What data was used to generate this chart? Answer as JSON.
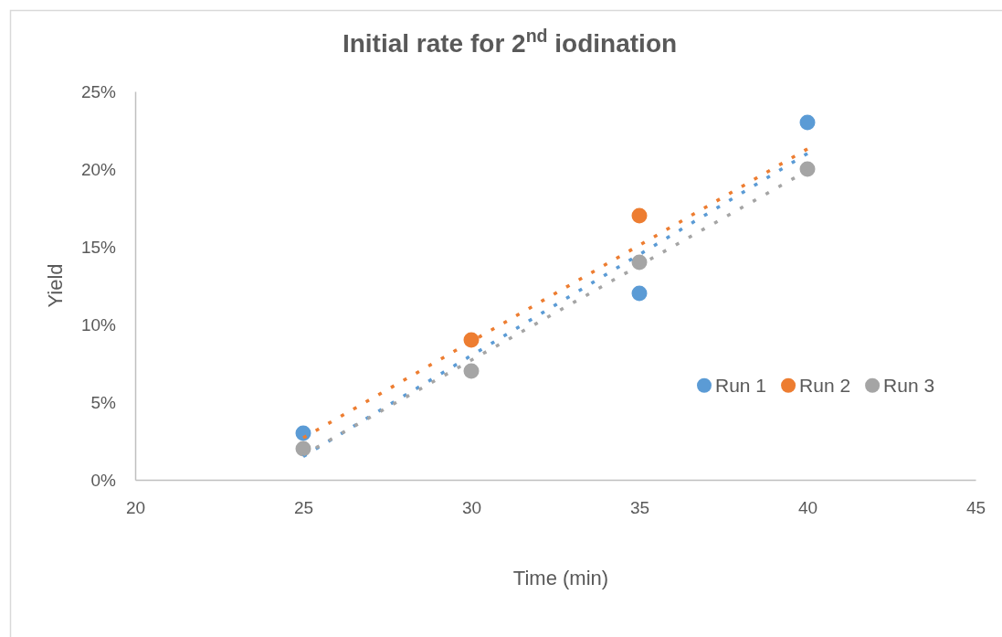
{
  "chart_data": {
    "type": "scatter",
    "title": "Initial rate for 2$^{nd}$ iodination",
    "xlabel": "Time (min)",
    "ylabel": "Yield",
    "x": [
      25,
      30,
      35,
      40
    ],
    "series": [
      {
        "name": "Run 1",
        "color": "#5b9bd5",
        "values": [
          3,
          null,
          12,
          23
        ]
      },
      {
        "name": "Run 2",
        "color": "#ed7d31",
        "values": [
          null,
          9,
          17,
          null
        ]
      },
      {
        "name": "Run 3",
        "color": "#a5a5a5",
        "values": [
          2,
          7,
          14,
          20
        ]
      },
      {
        "type": "line",
        "color": "#5b9bd5",
        "values": [
          1.5,
          8.0,
          14.5,
          21.0
        ],
        "marker": "none",
        "line_style": "dotted"
      },
      {
        "type": "line",
        "color": "#ed7d31",
        "values": [
          2.7,
          8.9,
          15.1,
          21.3
        ],
        "marker": "none",
        "line_style": "dotted"
      },
      {
        "type": "line",
        "color": "#a5a5a5",
        "values": [
          1.6,
          7.7,
          13.8,
          19.9
        ],
        "marker": "none",
        "line_style": "dotted"
      }
    ],
    "marker": "circle",
    "xlim": [
      20,
      45
    ],
    "xticks": [
      20,
      25,
      30,
      35,
      40,
      45
    ],
    "ylim": [
      0,
      25
    ],
    "yticks": [
      {
        "value": 0,
        "label": "0%"
      },
      {
        "value": 5,
        "label": "5%"
      },
      {
        "value": 10,
        "label": "10%"
      },
      {
        "value": 15,
        "label": "15%"
      },
      {
        "value": 20,
        "label": "20%"
      },
      {
        "value": 25,
        "label": "25%"
      }
    ],
    "legend": "right"
  }
}
